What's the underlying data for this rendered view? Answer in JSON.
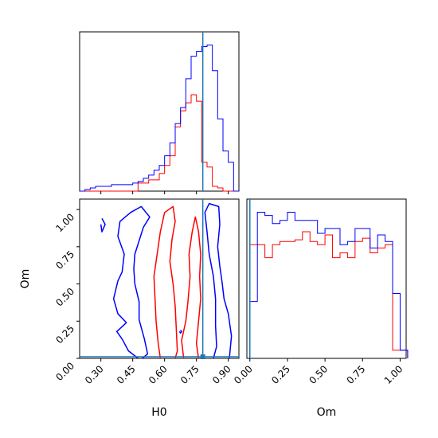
{
  "colors": {
    "red": "#ff0000",
    "blue": "#0000ff",
    "truth": "#1f77b4"
  },
  "chart_data": {
    "type": "corner",
    "parameters": [
      "H0",
      "Om"
    ],
    "truth": {
      "H0": 0.78,
      "Om": 0.0
    },
    "panels": [
      {
        "id": "hist-H0",
        "type": "step-histogram",
        "xlim": [
          0.2,
          0.95
        ],
        "bin_edges": [
          0.2,
          0.225,
          0.25,
          0.275,
          0.3,
          0.325,
          0.35,
          0.375,
          0.4,
          0.425,
          0.45,
          0.475,
          0.5,
          0.525,
          0.55,
          0.575,
          0.6,
          0.625,
          0.65,
          0.675,
          0.7,
          0.725,
          0.75,
          0.775,
          0.8,
          0.825,
          0.85,
          0.875,
          0.9,
          0.925,
          0.95
        ],
        "series": [
          {
            "color": "red",
            "values": [
              0,
              0,
              0,
              0,
              0,
              0,
              0,
              0,
              0,
              0,
              0,
              0.05,
              0.05,
              0.07,
              0.07,
              0.11,
              0.16,
              0.22,
              0.4,
              0.5,
              0.55,
              0.6,
              0.56,
              0.18,
              0.15,
              0.03,
              0.02,
              0,
              0,
              0
            ]
          },
          {
            "color": "blue",
            "values": [
              0,
              0.01,
              0.02,
              0.03,
              0.03,
              0.03,
              0.04,
              0.04,
              0.04,
              0.04,
              0.05,
              0.06,
              0.08,
              0.1,
              0.13,
              0.16,
              0.22,
              0.3,
              0.42,
              0.52,
              0.7,
              0.84,
              0.87,
              0.9,
              0.91,
              0.75,
              0.45,
              0.25,
              0.18,
              0
            ]
          }
        ]
      },
      {
        "id": "hist-Om",
        "type": "step-histogram",
        "xlim": [
          -0.02,
          1.04
        ],
        "bin_edges": [
          0.0,
          0.05,
          0.1,
          0.15,
          0.2,
          0.25,
          0.3,
          0.35,
          0.4,
          0.45,
          0.5,
          0.55,
          0.6,
          0.65,
          0.7,
          0.75,
          0.8,
          0.85,
          0.9,
          0.95,
          1.0,
          1.05
        ],
        "series": [
          {
            "color": "red",
            "values": [
              0.7,
              0.7,
              0.62,
              0.7,
              0.72,
              0.72,
              0.73,
              0.78,
              0.72,
              0.7,
              0.76,
              0.62,
              0.65,
              0.62,
              0.72,
              0.74,
              0.65,
              0.68,
              0.7,
              0.05,
              0.05
            ]
          },
          {
            "color": "blue",
            "values": [
              0.35,
              0.9,
              0.88,
              0.83,
              0.85,
              0.9,
              0.85,
              0.85,
              0.85,
              0.77,
              0.8,
              0.8,
              0.7,
              0.72,
              0.8,
              0.8,
              0.68,
              0.76,
              0.72,
              0.4,
              0.05
            ]
          }
        ]
      },
      {
        "id": "contour-H0-Om",
        "type": "contour",
        "xlabel": "H0",
        "ylabel": "Om",
        "xlim": [
          0.2,
          0.95
        ],
        "ylim": [
          0.0,
          1.07
        ],
        "xticks": [
          "0.30",
          "0.45",
          "0.60",
          "0.75",
          "0.90"
        ],
        "yticks": [
          "0.00",
          "0.25",
          "0.50",
          "0.75",
          "1.00"
        ],
        "contours": [
          {
            "color": "blue",
            "points": [
              [
                0.475,
                0.0
              ],
              [
                0.43,
                0.05
              ],
              [
                0.4,
                0.13
              ],
              [
                0.375,
                0.18
              ],
              [
                0.42,
                0.24
              ],
              [
                0.38,
                0.3
              ],
              [
                0.36,
                0.4
              ],
              [
                0.38,
                0.52
              ],
              [
                0.4,
                0.58
              ],
              [
                0.41,
                0.7
              ],
              [
                0.38,
                0.82
              ],
              [
                0.39,
                0.92
              ],
              [
                0.44,
                0.98
              ],
              [
                0.49,
                1.02
              ],
              [
                0.53,
                0.95
              ],
              [
                0.5,
                0.88
              ],
              [
                0.48,
                0.79
              ],
              [
                0.46,
                0.7
              ],
              [
                0.455,
                0.6
              ],
              [
                0.46,
                0.5
              ],
              [
                0.48,
                0.38
              ],
              [
                0.48,
                0.26
              ],
              [
                0.505,
                0.13
              ],
              [
                0.52,
                0.03
              ],
              [
                0.495,
                0.0
              ]
            ]
          },
          {
            "color": "blue",
            "points": [
              [
                0.905,
                0.0
              ],
              [
                0.915,
                0.15
              ],
              [
                0.9,
                0.3
              ],
              [
                0.88,
                0.4
              ],
              [
                0.87,
                0.52
              ],
              [
                0.86,
                0.62
              ],
              [
                0.85,
                0.75
              ],
              [
                0.86,
                0.9
              ],
              [
                0.855,
                1.02
              ],
              [
                0.81,
                1.04
              ],
              [
                0.79,
                0.98
              ],
              [
                0.8,
                0.85
              ],
              [
                0.81,
                0.7
              ],
              [
                0.83,
                0.55
              ],
              [
                0.84,
                0.4
              ],
              [
                0.84,
                0.22
              ],
              [
                0.845,
                0.08
              ],
              [
                0.83,
                0.0
              ]
            ]
          },
          {
            "color": "blue",
            "points": [
              [
                0.3,
                0.9
              ],
              [
                0.305,
                0.85
              ],
              [
                0.32,
                0.9
              ],
              [
                0.305,
                0.94
              ]
            ]
          },
          {
            "color": "blue",
            "points": [
              [
                0.67,
                0.18
              ],
              [
                0.675,
                0.17
              ],
              [
                0.68,
                0.18
              ],
              [
                0.675,
                0.19
              ]
            ]
          },
          {
            "color": "red",
            "points": [
              [
                0.58,
                0.0
              ],
              [
                0.57,
                0.1
              ],
              [
                0.56,
                0.25
              ],
              [
                0.555,
                0.4
              ],
              [
                0.55,
                0.55
              ],
              [
                0.565,
                0.7
              ],
              [
                0.58,
                0.85
              ],
              [
                0.6,
                0.98
              ],
              [
                0.64,
                1.02
              ],
              [
                0.65,
                0.92
              ],
              [
                0.635,
                0.8
              ],
              [
                0.625,
                0.65
              ],
              [
                0.64,
                0.5
              ],
              [
                0.65,
                0.35
              ],
              [
                0.655,
                0.2
              ],
              [
                0.66,
                0.05
              ],
              [
                0.65,
                0.0
              ]
            ]
          },
          {
            "color": "red",
            "points": [
              [
                0.69,
                0.0
              ],
              [
                0.68,
                0.12
              ],
              [
                0.7,
                0.25
              ],
              [
                0.71,
                0.38
              ],
              [
                0.72,
                0.55
              ],
              [
                0.715,
                0.7
              ],
              [
                0.73,
                0.85
              ],
              [
                0.745,
                0.95
              ],
              [
                0.76,
                0.85
              ],
              [
                0.77,
                0.7
              ],
              [
                0.765,
                0.55
              ],
              [
                0.77,
                0.4
              ],
              [
                0.76,
                0.25
              ],
              [
                0.75,
                0.1
              ],
              [
                0.76,
                0.0
              ]
            ]
          }
        ]
      }
    ],
    "histogram_ticks_H0": [
      "0.30",
      "0.45",
      "0.60",
      "0.75",
      "0.90"
    ],
    "histogram_ticks_Om": [
      "0.00",
      "0.25",
      "0.50",
      "0.75",
      "1.00"
    ]
  }
}
